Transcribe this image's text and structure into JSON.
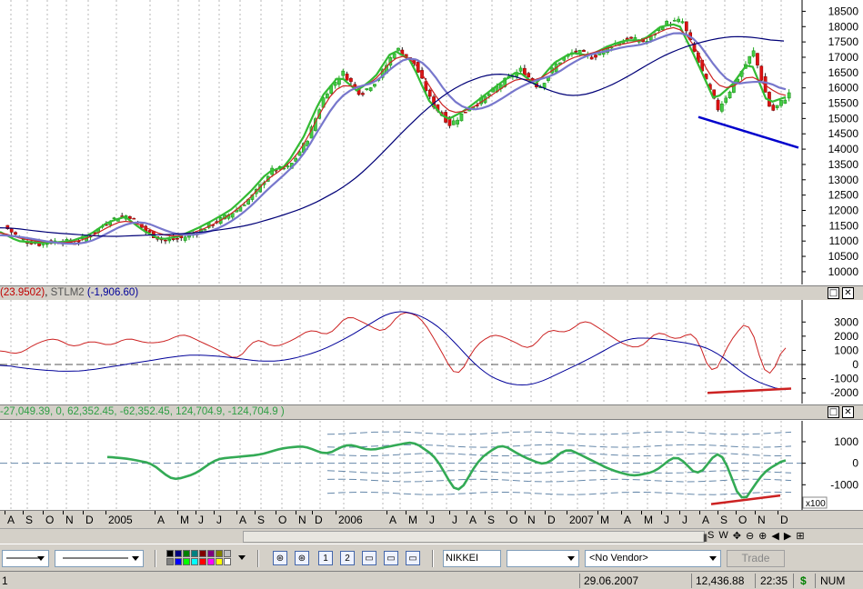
{
  "chart_data": [
    {
      "type": "candlestick",
      "title": "",
      "ylim": [
        9700,
        18750
      ],
      "y_ticks": [
        "18500",
        "18000",
        "17500",
        "17000",
        "16500",
        "16000",
        "15500",
        "15000",
        "14500",
        "14000",
        "13500",
        "13000",
        "12500",
        "12000",
        "11500",
        "11000",
        "10500",
        "10000"
      ],
      "x_ticks": [
        "A",
        "S",
        "O",
        "N",
        "D",
        "2005",
        "A",
        "M",
        "J",
        "J",
        "A",
        "S",
        "O",
        "N",
        "D",
        "2006",
        "A",
        "M",
        "J",
        "J",
        "A",
        "S",
        "O",
        "N",
        "D",
        "2007",
        "M",
        "A",
        "M",
        "J",
        "J",
        "A",
        "S",
        "O",
        "N",
        "D"
      ],
      "series": [
        {
          "style": "candles",
          "values": [
            11500,
            11050,
            10900,
            11000,
            10950,
            11250,
            11700,
            11850,
            11300,
            11000,
            11100,
            11350,
            11650,
            12000,
            12500,
            13300,
            13400,
            14300,
            15800,
            16500,
            15800,
            16300,
            17300,
            16800,
            15500,
            14800,
            15300,
            15700,
            16200,
            16600,
            16000,
            16800,
            17200,
            17000,
            17400,
            17600,
            17500,
            18100,
            18200,
            16700,
            15300,
            16200,
            17200,
            15200,
            15800
          ]
        },
        {
          "style": "moving-average-fast",
          "values": [
            11300,
            11000,
            10950,
            10950,
            11000,
            11200,
            11600,
            11800,
            11350,
            11050,
            11150,
            11400,
            11700,
            12050,
            12600,
            13250,
            13450,
            14400,
            15700,
            16400,
            15900,
            16350,
            17250,
            16900,
            15600,
            14950,
            15250,
            15700,
            16150,
            16550,
            16100,
            16800,
            17150,
            17050,
            17350,
            17550,
            17550,
            18000,
            18100,
            16900,
            15600,
            16100,
            16900,
            15500,
            15700
          ]
        },
        {
          "style": "moving-average-medium",
          "values": [
            11300,
            11100,
            11000,
            10950,
            10950,
            11100,
            11450,
            11700,
            11500,
            11200,
            11150,
            11300,
            11550,
            11900,
            12400,
            13050,
            13400,
            14100,
            15300,
            16150,
            16000,
            16200,
            17000,
            17050,
            16100,
            15200,
            15200,
            15550,
            15950,
            16350,
            16200,
            16600,
            17000,
            17100,
            17300,
            17450,
            17550,
            17850,
            18050,
            17300,
            16100,
            15950,
            16500,
            16000,
            15700
          ]
        },
        {
          "style": "moving-average-slow",
          "values": [
            11200,
            11150,
            11050,
            10950,
            10900,
            10950,
            11250,
            11550,
            11650,
            11400,
            11200,
            11200,
            11350,
            11650,
            12100,
            12700,
            13200,
            13800,
            14800,
            15700,
            16050,
            16150,
            16700,
            17050,
            16700,
            15800,
            15300,
            15300,
            15600,
            16000,
            16250,
            16400,
            16800,
            17100,
            17200,
            17350,
            17400,
            17650,
            17850,
            17600,
            16700,
            16100,
            16200,
            16200,
            15900
          ]
        },
        {
          "style": "long-average",
          "values": [
            11450,
            11400,
            11300,
            11250,
            11200,
            11150,
            11150,
            11200,
            11200,
            11250,
            11300,
            11400,
            11500,
            11700,
            11900,
            12150,
            12500,
            12900,
            13500,
            14200,
            14900,
            15500,
            16000,
            16300,
            16500,
            16400,
            16100,
            15800,
            15700,
            15900,
            16200,
            16600,
            17000,
            17300,
            17500,
            17650,
            17700,
            17600,
            17500
          ]
        },
        {
          "style": "trendline",
          "values": [
            15050,
            14050
          ]
        }
      ]
    },
    {
      "type": "line",
      "title": "",
      "ylim": [
        -2500,
        4300
      ],
      "y_ticks": [
        "3000",
        "2000",
        "1000",
        "0",
        "-1000",
        "-2000"
      ],
      "series": [
        {
          "name": "",
          "values": [
            1000,
            700,
            1500,
            1900,
            1200,
            1700,
            1300,
            1900,
            1500,
            1600,
            2200,
            1600,
            1000,
            300,
            1900,
            1200,
            1700,
            2500,
            2000,
            3500,
            2900,
            2200,
            3800,
            3400,
            1300,
            -1100,
            1300,
            2200,
            1700,
            1000,
            2500,
            2200,
            3200,
            2400,
            1500,
            1100,
            2400,
            1700,
            2400,
            -1000,
            1800,
            3200,
            -1400,
            1600
          ]
        },
        {
          "name": "STLM2",
          "values": [
            0,
            -200,
            -350,
            -450,
            -500,
            -400,
            -200,
            0,
            200,
            400,
            600,
            700,
            600,
            500,
            300,
            200,
            300,
            600,
            1000,
            1600,
            2300,
            3100,
            3800,
            3700,
            3200,
            2200,
            800,
            -500,
            -1200,
            -1500,
            -1400,
            -800,
            -200,
            400,
            1100,
            1800,
            1900,
            1800,
            1600,
            1400,
            1000,
            0,
            -1000,
            -1500,
            -1900
          ]
        },
        {
          "style": "trendline",
          "values": [
            -2000,
            -1700
          ]
        }
      ]
    },
    {
      "type": "line",
      "title": "",
      "ylim": [
        -2000,
        1800
      ],
      "y_ticks": [
        "1000",
        "0",
        "-1000"
      ],
      "series": [
        {
          "name": "",
          "values": [
            300,
            200,
            0,
            -800,
            -500,
            200,
            300,
            400,
            700,
            800,
            400,
            900,
            600,
            800,
            1000,
            300,
            -1500,
            200,
            900,
            300,
            -100,
            700,
            200,
            -300,
            -600,
            -400,
            400,
            -600,
            700,
            -1900,
            -400,
            200
          ]
        },
        {
          "style": "trendline",
          "values": [
            -1900,
            -1500
          ]
        }
      ]
    }
  ],
  "pane1": {
    "caption_value": "(23.9502)",
    "caption_sep": ", ",
    "caption_name": "STLM2",
    "caption_value2": " (-1,906.60)"
  },
  "pane2": {
    "caption": "-27,049.39, 0, 62,352.45, -62,352.45, 124,704.9, -124,704.9 )",
    "scale_badge": "x100"
  },
  "window_buttons": {
    "restore": "□",
    "close": "✕"
  },
  "date_axis": [
    "A",
    "S",
    "O",
    "N",
    "D",
    "2005",
    "A",
    "M",
    "J",
    "J",
    "A",
    "S",
    "O",
    "N",
    "D",
    "2006",
    "A",
    "M",
    "J",
    "J",
    "A",
    "S",
    "O",
    "N",
    "D",
    "2007",
    "M",
    "A",
    "M",
    "J",
    "J",
    "A",
    "S",
    "O",
    "N",
    "D"
  ],
  "scroll": {
    "thumb": "|||",
    "tools": [
      "S",
      "W",
      "✥",
      "⊖",
      "⊕",
      "◀",
      "▶",
      "⊞"
    ]
  },
  "toolbar": {
    "symbol": "NIKKEI",
    "vendor": "<No Vendor>",
    "trade": "Trade",
    "icons": [
      "⊛",
      "⊛",
      "1",
      "2",
      "▭",
      "▭",
      "▭",
      "▭"
    ]
  },
  "palette": [
    "#000000",
    "#000080",
    "#008000",
    "#008080",
    "#800000",
    "#800080",
    "#808000",
    "#c0c0c0",
    "#808080",
    "#0000ff",
    "#00ff00",
    "#00ffff",
    "#ff0000",
    "#ff00ff",
    "#ffff00",
    "#ffffff"
  ],
  "status": {
    "left": "1",
    "date": "29.06.2007",
    "value": "12,436.88",
    "time": "22:35",
    "currency": "$",
    "mode": "NUM"
  }
}
